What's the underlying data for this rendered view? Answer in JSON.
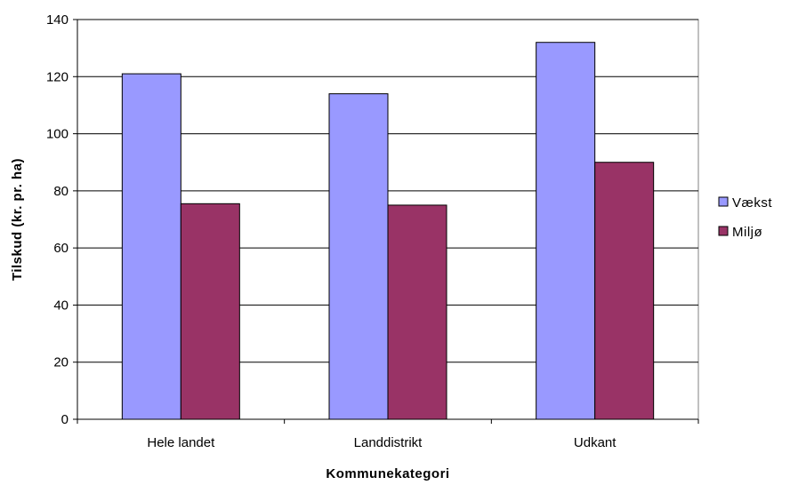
{
  "chart_data": {
    "type": "bar",
    "categories": [
      "Hele landet",
      "Landdistrikt",
      "Udkant"
    ],
    "series": [
      {
        "name": "Vækst",
        "values": [
          121,
          114,
          132
        ],
        "color": "#9999ff"
      },
      {
        "name": "Miljø",
        "values": [
          75.5,
          75,
          90
        ],
        "color": "#993366"
      }
    ],
    "xlabel": "Kommunekategori",
    "ylabel": "Tilskud (kr. pr. ha)",
    "ylim": [
      0,
      140
    ],
    "yticks": [
      0,
      20,
      40,
      60,
      80,
      100,
      120,
      140
    ],
    "grid": true,
    "legend_position": "right"
  }
}
